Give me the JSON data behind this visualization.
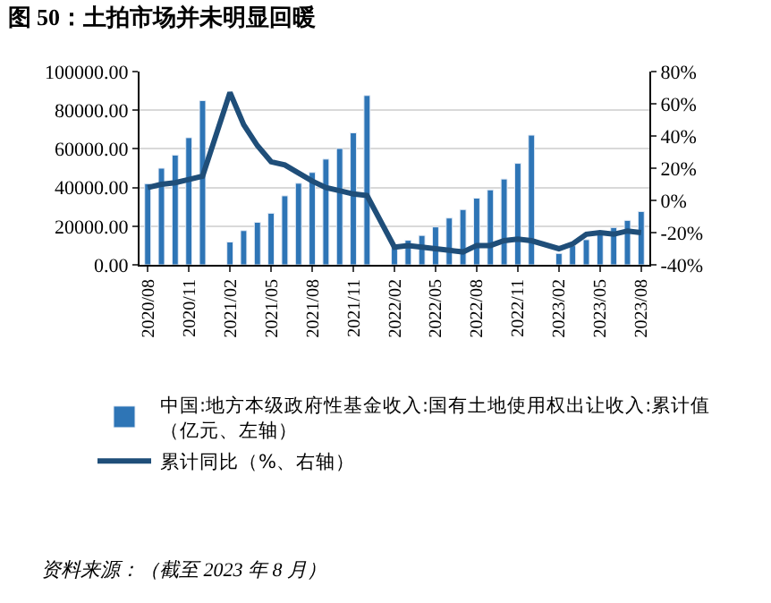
{
  "chart_data": {
    "type": "bar",
    "title": "图 50：土拍市场并未明显回暖",
    "categories": [
      "2020/08",
      null,
      null,
      "2020/11",
      null,
      null,
      "2021/02",
      null,
      null,
      "2021/05",
      null,
      null,
      "2021/08",
      null,
      null,
      "2021/11",
      null,
      null,
      "2022/02",
      null,
      null,
      "2022/05",
      null,
      null,
      "2022/08",
      null,
      null,
      "2022/11",
      null,
      null,
      "2023/02",
      null,
      null,
      "2023/05",
      null,
      null,
      "2023/08"
    ],
    "series": [
      {
        "name": "中国:地方本级政府性基金收入:国有土地使用权出让收入:累计值（亿元、左轴）",
        "color": "#2e75b6",
        "values": [
          42000,
          50000,
          56800,
          65800,
          85000,
          null,
          11800,
          17700,
          22000,
          26700,
          35700,
          42200,
          47800,
          54700,
          60200,
          68300,
          87600,
          null,
          9900,
          12700,
          15200,
          19600,
          24200,
          28600,
          34500,
          38800,
          44400,
          52500,
          67100,
          null,
          5900,
          9900,
          13000,
          16800,
          19300,
          23000,
          27600
        ]
      },
      {
        "name": "累计同比（%、右轴）",
        "type": "line",
        "axis": "y2",
        "color": "#1f4e79",
        "values": [
          8,
          10,
          11,
          13,
          15,
          null,
          67,
          47,
          34,
          24,
          22,
          17,
          12,
          8,
          6,
          4,
          3,
          null,
          -29,
          -28,
          -29,
          -30,
          -31,
          -32,
          -28,
          -28,
          -25,
          -24,
          -25,
          null,
          -30,
          -27,
          -21,
          -20,
          -21,
          -19,
          -20
        ]
      }
    ],
    "ylim": [
      0,
      100000
    ],
    "yticks": [
      {
        "value": 0,
        "label": "0.00"
      },
      {
        "value": 20000,
        "label": "20000.00"
      },
      {
        "value": 40000,
        "label": "40000.00"
      },
      {
        "value": 60000,
        "label": "60000.00"
      },
      {
        "value": 80000,
        "label": "80000.00"
      },
      {
        "value": 100000,
        "label": "100000.00"
      }
    ],
    "y2lim": [
      -40,
      80
    ],
    "y2ticks": [
      {
        "value": -40,
        "label": "-40%"
      },
      {
        "value": -20,
        "label": "-20%"
      },
      {
        "value": 0,
        "label": "0%"
      },
      {
        "value": 20,
        "label": "20%"
      },
      {
        "value": 40,
        "label": "40%"
      },
      {
        "value": 60,
        "label": "60%"
      },
      {
        "value": 80,
        "label": "80%"
      }
    ],
    "grid": "y",
    "legend": "bottom",
    "marker": "none",
    "line_style": "solid",
    "annotations": [
      "资料来源：（截至 2023 年 8 月）"
    ]
  }
}
